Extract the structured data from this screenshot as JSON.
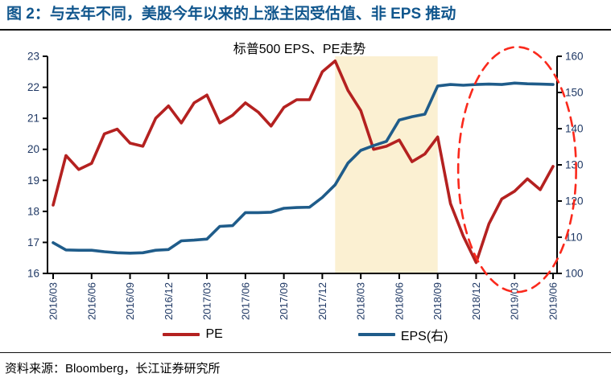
{
  "header": {
    "title": "图 2：与去年不同，美股今年以来的上涨主因受估值、非 EPS 推动"
  },
  "source_line": "资料来源：Bloomberg，长江证券研究所",
  "colors": {
    "title_text": "#10568D",
    "axis_label_text": "#1F3864",
    "pe_line": "#B42120",
    "eps_line": "#1F5C8A",
    "highlight_band": "#FBF0D2",
    "annotation_ellipse": "#FA291C",
    "axis_line": "#000000"
  },
  "chart_data": {
    "type": "line",
    "title": "标普500 EPS、PE走势",
    "grid": false,
    "legend_position": "bottom",
    "categories": [
      "2016/03",
      "2016/04",
      "2016/05",
      "2016/06",
      "2016/07",
      "2016/08",
      "2016/09",
      "2016/10",
      "2016/11",
      "2016/12",
      "2017/01",
      "2017/02",
      "2017/03",
      "2017/04",
      "2017/05",
      "2017/06",
      "2017/07",
      "2017/08",
      "2017/09",
      "2017/10",
      "2017/11",
      "2017/12",
      "2018/01",
      "2018/02",
      "2018/03",
      "2018/04",
      "2018/05",
      "2018/06",
      "2018/07",
      "2018/08",
      "2018/09",
      "2018/10",
      "2018/11",
      "2018/12",
      "2019/01",
      "2019/02",
      "2019/03",
      "2019/04",
      "2019/05",
      "2019/06"
    ],
    "x_tick_labels": [
      "2016/03",
      "2016/06",
      "2016/09",
      "2016/12",
      "2017/03",
      "2017/06",
      "2017/09",
      "2017/12",
      "2018/03",
      "2018/06",
      "2018/09",
      "2018/12",
      "2019/03",
      "2019/06"
    ],
    "x_tick_every": 3,
    "series": [
      {
        "id": "pe",
        "name": "PE",
        "axis": "left",
        "color": "#B42120",
        "values": [
          18.2,
          19.8,
          19.35,
          19.55,
          20.5,
          20.65,
          20.2,
          20.1,
          21.0,
          21.4,
          20.85,
          21.5,
          21.75,
          20.85,
          21.1,
          21.5,
          21.2,
          20.75,
          21.35,
          21.6,
          21.6,
          22.5,
          22.85,
          21.9,
          21.25,
          20.0,
          20.1,
          20.3,
          19.6,
          19.85,
          20.4,
          18.25,
          17.2,
          16.35,
          17.6,
          18.4,
          18.65,
          19.05,
          18.7,
          19.45
        ]
      },
      {
        "id": "eps",
        "name": "EPS(右)",
        "axis": "right",
        "color": "#1F5C8A",
        "values": [
          108.5,
          106.5,
          106.4,
          106.4,
          106.0,
          105.7,
          105.6,
          105.7,
          106.4,
          106.6,
          109.0,
          109.2,
          109.5,
          113.0,
          113.2,
          116.8,
          116.8,
          116.9,
          118.0,
          118.2,
          118.3,
          121.0,
          124.5,
          130.5,
          134.0,
          135.3,
          136.5,
          142.4,
          143.3,
          144.0,
          151.8,
          152.2,
          152.0,
          152.2,
          152.3,
          152.2,
          152.6,
          152.4,
          152.3,
          152.2
        ]
      }
    ],
    "left_axis": {
      "min": 16,
      "max": 23,
      "ticks": [
        16,
        17,
        18,
        19,
        20,
        21,
        22,
        23
      ]
    },
    "right_axis": {
      "min": 100,
      "max": 160,
      "ticks": [
        100,
        110,
        120,
        130,
        140,
        150,
        160
      ]
    },
    "highlight_band": {
      "start_category": "2018/01",
      "end_category": "2018/09",
      "color": "#FBF0D2"
    },
    "annotation_ellipse": {
      "center_category_index": 36.2,
      "center_value_left": 19.35,
      "radius_categories": 4.6,
      "radius_value_left": 3.95,
      "color": "#FA291C",
      "style": "dashed"
    },
    "legend": [
      {
        "label": "PE",
        "color": "#B42120"
      },
      {
        "label": "EPS(右)",
        "color": "#1F5C8A"
      }
    ]
  }
}
